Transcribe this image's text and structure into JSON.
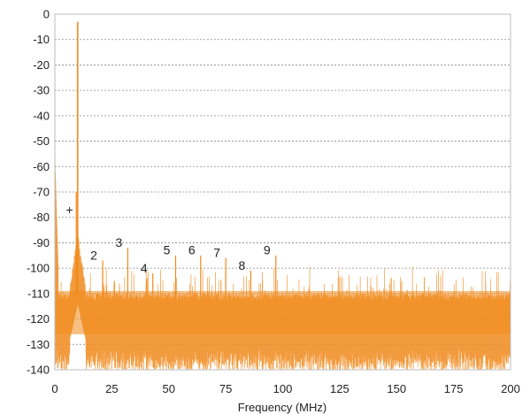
{
  "chart_data": {
    "type": "line",
    "title": "",
    "xlabel": "Frequency (MHz)",
    "ylabel": "",
    "xlim": [
      0,
      200
    ],
    "ylim": [
      -140,
      0
    ],
    "x_ticks": [
      "0",
      "25",
      "50",
      "75",
      "100",
      "125",
      "150",
      "175",
      "200"
    ],
    "y_ticks": [
      "0",
      "-10",
      "-20",
      "-30",
      "-40",
      "-50",
      "-60",
      "-70",
      "-80",
      "-90",
      "-100",
      "-110",
      "-120",
      "-130",
      "-140"
    ],
    "grid": "horizontal-dashed",
    "series_color": "#f08a1c",
    "noise_floor": {
      "median": -118,
      "band_low": -132,
      "band_high": -110
    },
    "fundamental": {
      "x": 10,
      "y": -3
    },
    "spurs": [
      {
        "label": "+",
        "x": 8,
        "y": -77
      },
      {
        "label": "2",
        "x": 21,
        "y": -98
      },
      {
        "label": "3",
        "x": 32,
        "y": -93
      },
      {
        "label": "4",
        "x": 43,
        "y": -103
      },
      {
        "label": "5",
        "x": 53,
        "y": -96
      },
      {
        "label": "6",
        "x": 64,
        "y": -96
      },
      {
        "label": "7",
        "x": 75,
        "y": -97
      },
      {
        "label": "8",
        "x": 86,
        "y": -102
      },
      {
        "label": "9",
        "x": 97,
        "y": -96
      }
    ]
  }
}
